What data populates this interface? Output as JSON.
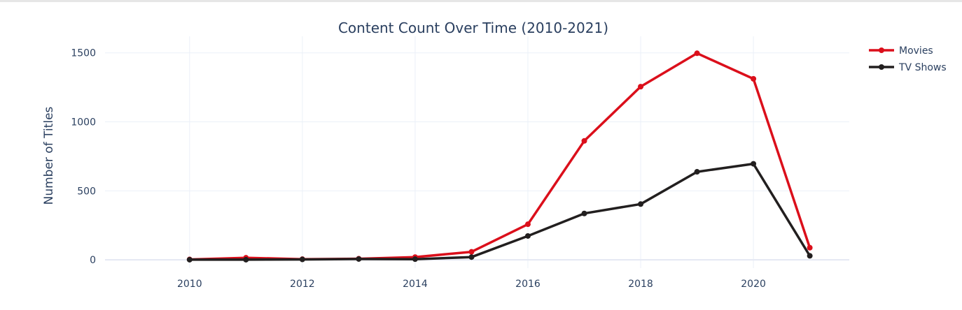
{
  "chart_data": {
    "type": "line",
    "title": "Content Count Over Time (2010-2021)",
    "xlabel": "",
    "ylabel": "Number of Titles",
    "x": [
      2010,
      2011,
      2012,
      2013,
      2014,
      2015,
      2016,
      2017,
      2018,
      2019,
      2020,
      2021
    ],
    "xlim": [
      2008.5,
      2021.7
    ],
    "ylim": [
      -60,
      1620
    ],
    "xticks": [
      2010,
      2012,
      2014,
      2016,
      2018,
      2020
    ],
    "yticks": [
      0,
      500,
      1000,
      1500
    ],
    "grid": true,
    "legend": "top-right",
    "series": [
      {
        "name": "Movies",
        "color": "#db0f1b",
        "values": [
          3,
          15,
          5,
          8,
          20,
          58,
          258,
          862,
          1255,
          1497,
          1312,
          88
        ]
      },
      {
        "name": "TV Shows",
        "color": "#221f1f",
        "values": [
          1,
          1,
          3,
          6,
          5,
          20,
          173,
          336,
          404,
          638,
          696,
          29
        ]
      }
    ]
  }
}
